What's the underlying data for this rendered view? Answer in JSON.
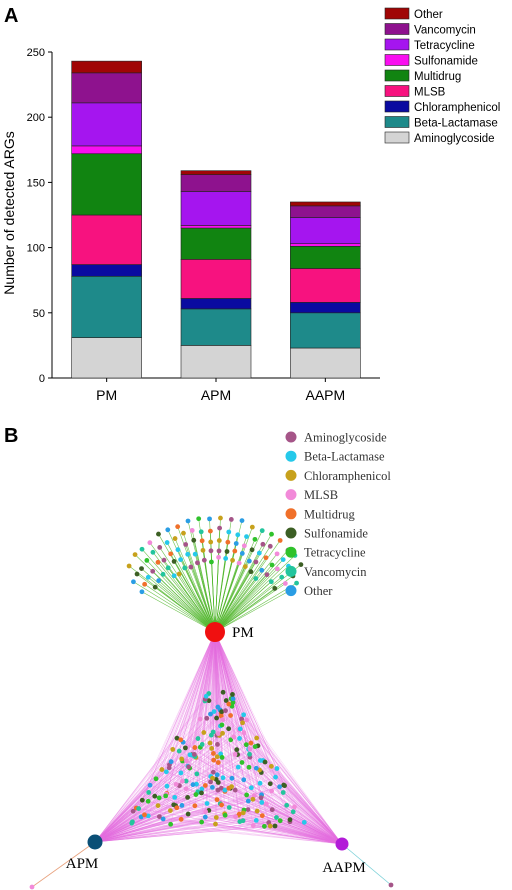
{
  "panel_a": {
    "letter": "A"
  },
  "panel_b": {
    "letter": "B"
  },
  "chart_data": [
    {
      "type": "bar",
      "stacked": true,
      "ylabel": "Number of detected ARGs",
      "xlabel": "",
      "ylim": [
        0,
        250
      ],
      "yticks": [
        0,
        50,
        100,
        150,
        200,
        250
      ],
      "categories": [
        "PM",
        "APM",
        "AAPM"
      ],
      "legend_position": "top-right",
      "series": [
        {
          "name": "Aminoglycoside",
          "color": "#d4d4d4",
          "values": [
            31,
            25,
            23
          ]
        },
        {
          "name": "Beta-Lactamase",
          "color": "#1e8a8a",
          "values": [
            47,
            28,
            27
          ]
        },
        {
          "name": "Chloramphenicol",
          "color": "#0a0aa0",
          "values": [
            9,
            8,
            8
          ]
        },
        {
          "name": "MLSB",
          "color": "#f7127f",
          "values": [
            38,
            30,
            26
          ]
        },
        {
          "name": "Multidrug",
          "color": "#118411",
          "values": [
            47,
            24,
            17
          ]
        },
        {
          "name": "Sulfonamide",
          "color": "#f90ff0",
          "values": [
            6,
            2,
            2
          ]
        },
        {
          "name": "Tetracycline",
          "color": "#a515ef",
          "values": [
            33,
            26,
            20
          ]
        },
        {
          "name": "Vancomycin",
          "color": "#8e128e",
          "values": [
            23,
            13,
            9
          ]
        },
        {
          "name": "Other",
          "color": "#a00505",
          "values": [
            9,
            3,
            3
          ]
        }
      ]
    },
    {
      "type": "network",
      "nodes_main": [
        {
          "label": "PM",
          "color": "#f01010"
        },
        {
          "label": "APM",
          "color": "#0a4f76"
        },
        {
          "label": "AAPM",
          "color": "#b21bd8"
        }
      ],
      "legend": [
        {
          "name": "Aminoglycoside",
          "color": "#a55588"
        },
        {
          "name": "Beta-Lactamase",
          "color": "#25c9ea"
        },
        {
          "name": "Chloramphenicol",
          "color": "#c7a11c"
        },
        {
          "name": "MLSB",
          "color": "#f28ad9"
        },
        {
          "name": "Multidrug",
          "color": "#f0702a"
        },
        {
          "name": "Sulfonamide",
          "color": "#3c5f24"
        },
        {
          "name": "Tetracycline",
          "color": "#2fc22b"
        },
        {
          "name": "Vancomycin",
          "color": "#23c59d"
        },
        {
          "name": "Other",
          "color": "#2a9de4"
        }
      ],
      "edge_colors": {
        "unique": "#53b72f",
        "shared": "#e56ee0",
        "apm_only": "#e8a27e",
        "aapm_only": "#7dd1d8"
      }
    }
  ]
}
